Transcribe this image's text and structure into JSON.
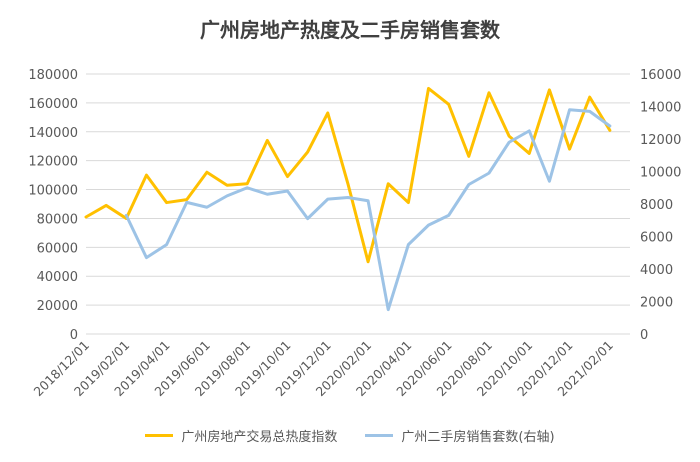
{
  "chart_data": {
    "type": "line",
    "title": "广州房地产热度及二手房销售套数",
    "x": [
      "2018/12/01",
      "2019/01/01",
      "2019/02/01",
      "2019/03/01",
      "2019/04/01",
      "2019/05/01",
      "2019/06/01",
      "2019/07/01",
      "2019/08/01",
      "2019/09/01",
      "2019/10/01",
      "2019/11/01",
      "2019/12/01",
      "2020/01/01",
      "2020/02/01",
      "2020/03/01",
      "2020/04/01",
      "2020/05/01",
      "2020/06/01",
      "2020/07/01",
      "2020/08/01",
      "2020/09/01",
      "2020/10/01",
      "2020/11/01",
      "2020/12/01",
      "2021/01/01",
      "2021/02/01",
      "2021/03/01"
    ],
    "x_tick_labels": [
      "2018/12/01",
      "2019/02/01",
      "2019/04/01",
      "2019/06/01",
      "2019/08/01",
      "2019/10/01",
      "2019/12/01",
      "2020/02/01",
      "2020/04/01",
      "2020/06/01",
      "2020/08/01",
      "2020/10/01",
      "2020/12/01",
      "2021/02/01"
    ],
    "y_left": {
      "ylim": [
        0,
        180000
      ],
      "ticks": [
        "0",
        "20000",
        "40000",
        "60000",
        "80000",
        "100000",
        "120000",
        "140000",
        "160000",
        "180000"
      ]
    },
    "y_right": {
      "ylim": [
        0,
        16000
      ],
      "ticks": [
        "0",
        "2000",
        "4000",
        "6000",
        "8000",
        "10000",
        "12000",
        "14000",
        "16000"
      ]
    },
    "series": [
      {
        "name": "广州房地产交易总热度指数",
        "axis": "left",
        "color": "#FFC000",
        "values": [
          81000,
          89000,
          80000,
          110000,
          91000,
          93000,
          112000,
          103000,
          104000,
          134000,
          109000,
          126000,
          153000,
          104000,
          50000,
          104000,
          91000,
          170000,
          159000,
          123000,
          167000,
          137000,
          125000,
          169000,
          128000,
          164000,
          141000,
          null
        ]
      },
      {
        "name": "广州二手房销售套数(右轴)",
        "axis": "right",
        "color": "#9DC3E6",
        "values": [
          null,
          null,
          7300,
          4700,
          5500,
          8100,
          7800,
          8500,
          9000,
          8600,
          8800,
          7100,
          8300,
          8400,
          8200,
          1500,
          5500,
          6700,
          7300,
          9200,
          9900,
          11800,
          12500,
          9400,
          13800,
          13700,
          12800,
          null
        ]
      }
    ],
    "grid": true,
    "legend": "bottom"
  }
}
